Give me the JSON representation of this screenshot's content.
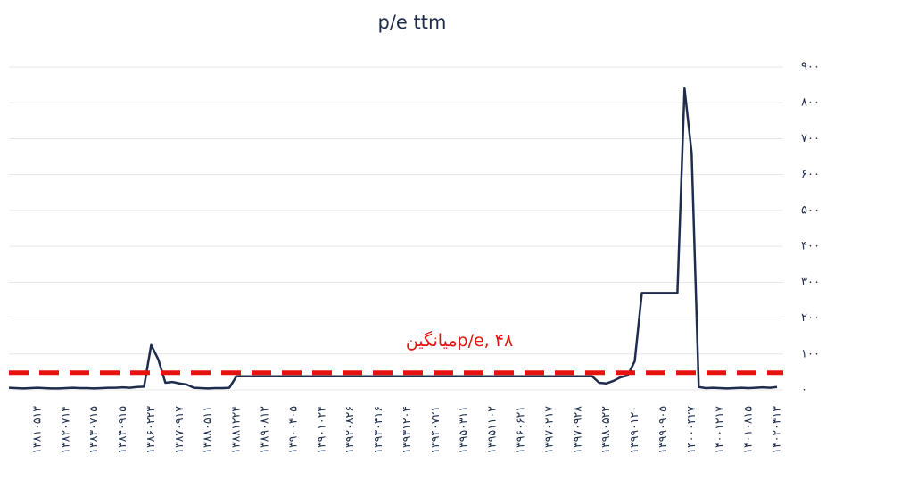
{
  "chart_data": {
    "type": "line",
    "title": "p/e ttm",
    "categories": [
      null,
      null,
      null,
      null,
      "۱۳۸۱۰۵۱۳",
      null,
      null,
      null,
      "۱۳۸۲۰۷۱۴",
      null,
      null,
      null,
      "۱۳۸۳۰۷۱۵",
      null,
      null,
      null,
      "۱۳۸۴۰۹۱۵",
      null,
      null,
      null,
      "۱۳۸۶۰۲۲۳",
      null,
      null,
      null,
      "۱۳۸۷۰۹۱۷",
      null,
      null,
      null,
      "۱۳۸۸۰۵۱۱",
      null,
      null,
      null,
      "۱۳۸۸۱۲۲۴",
      null,
      null,
      null,
      "۱۳۸۹۰۸۱۲",
      null,
      null,
      null,
      "۱۳۹۰۰۴۰۵",
      null,
      null,
      null,
      "۱۳۹۰۱۰۲۴",
      null,
      null,
      null,
      "۱۳۹۲۰۸۲۶",
      null,
      null,
      null,
      "۱۳۹۳۰۴۱۶",
      null,
      null,
      null,
      "۱۳۹۳۱۲۰۴",
      null,
      null,
      null,
      "۱۳۹۴۰۷۲۱",
      null,
      null,
      null,
      "۱۳۹۵۰۳۱۱",
      null,
      null,
      null,
      "۱۳۹۵۱۱۰۲",
      null,
      null,
      null,
      "۱۳۹۶۰۶۲۱",
      null,
      null,
      null,
      "۱۳۹۷۰۲۱۷",
      null,
      null,
      null,
      "۱۳۹۷۰۹۲۸",
      null,
      null,
      null,
      "۱۳۹۸۰۵۲۲",
      null,
      null,
      null,
      "۱۳۹۹۰۱۲۰",
      null,
      null,
      null,
      "۱۳۹۹۰۹۰۵",
      null,
      null,
      null,
      "۱۴۰۰۰۴۲۷",
      null,
      null,
      null,
      "۱۴۰۰۱۲۱۷",
      null,
      null,
      null,
      "۱۴۰۱۰۸۱۵",
      null,
      null,
      null,
      "۱۴۰۲۰۴۱۳"
    ],
    "values": [
      6,
      5,
      4,
      5,
      6,
      5,
      4,
      4,
      5,
      6,
      5,
      5,
      4,
      5,
      6,
      6,
      7,
      6,
      8,
      9,
      125,
      85,
      20,
      22,
      18,
      15,
      6,
      5,
      4,
      5,
      5,
      6,
      38,
      38,
      38,
      38,
      38,
      38,
      38,
      38,
      38,
      38,
      38,
      38,
      38,
      38,
      38,
      38,
      38,
      38,
      38,
      38,
      38,
      38,
      38,
      38,
      38,
      38,
      38,
      38,
      38,
      38,
      38,
      38,
      38,
      38,
      38,
      38,
      38,
      38,
      38,
      38,
      38,
      38,
      38,
      38,
      38,
      38,
      38,
      38,
      38,
      38,
      38,
      20,
      18,
      25,
      35,
      40,
      80,
      270,
      270,
      270,
      270,
      270,
      270,
      840,
      660,
      8,
      5,
      6,
      5,
      4,
      5,
      6,
      5,
      6,
      7,
      6,
      8
    ],
    "color": "#1f2d4d",
    "ylim": [
      0,
      900
    ],
    "yticks": [
      {
        "value": 0,
        "label": "۰"
      },
      {
        "value": 100,
        "label": "۱۰۰"
      },
      {
        "value": 200,
        "label": "۲۰۰"
      },
      {
        "value": 300,
        "label": "۳۰۰"
      },
      {
        "value": 400,
        "label": "۴۰۰"
      },
      {
        "value": 500,
        "label": "۵۰۰"
      },
      {
        "value": 600,
        "label": "۶۰۰"
      },
      {
        "value": 700,
        "label": "۷۰۰"
      },
      {
        "value": 800,
        "label": "۸۰۰"
      },
      {
        "value": 900,
        "label": "۹۰۰"
      }
    ],
    "grid": true,
    "average_line": {
      "value": 48,
      "label": "میانگینp/e, ۴۸",
      "color": "#e5120f"
    }
  }
}
